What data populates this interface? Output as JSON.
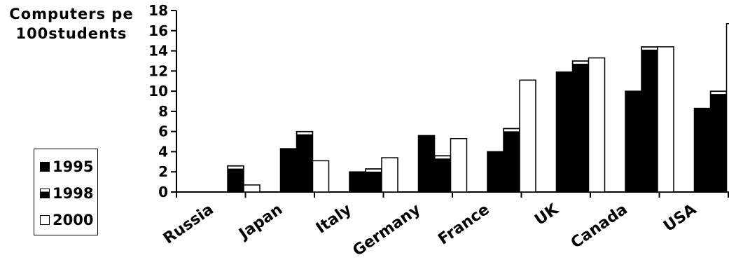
{
  "chart_data": {
    "type": "bar",
    "title": "",
    "ylabel_lines": [
      "Computers pe",
      "100students"
    ],
    "xlabel": "",
    "ylim": [
      0,
      18
    ],
    "yticks": [
      0,
      2,
      4,
      6,
      8,
      10,
      12,
      14,
      16,
      18
    ],
    "categories": [
      "Russia",
      "Japan",
      "Italy",
      "Germany",
      "France",
      "UK",
      "Canada",
      "USA"
    ],
    "series": [
      {
        "name": "1995",
        "fill": "#000000",
        "values": [
          0,
          4.3,
          2.0,
          5.6,
          4.0,
          11.9,
          10.0,
          8.3
        ]
      },
      {
        "name": "1998",
        "fill": "#000000",
        "values": [
          2.6,
          6.0,
          2.3,
          3.6,
          6.3,
          13.0,
          14.4,
          10.0
        ]
      },
      {
        "name": "2000",
        "fill": "#ffffff",
        "values": [
          0.7,
          3.1,
          3.4,
          5.3,
          11.1,
          13.3,
          14.4,
          16.7
        ]
      }
    ],
    "legend_position": "left",
    "grid": false
  }
}
